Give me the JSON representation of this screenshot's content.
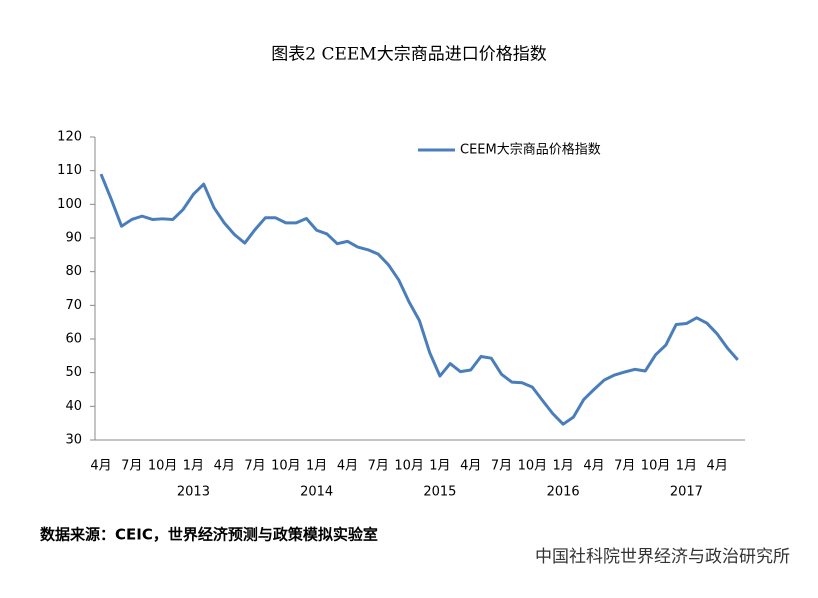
{
  "chart_data": {
    "type": "line",
    "title": "图表2 CEEM大宗商品进口价格指数",
    "categories": [
      "4月",
      null,
      null,
      "7月",
      null,
      null,
      "10月",
      null,
      null,
      "1月",
      null,
      null,
      "4月",
      null,
      null,
      "7月",
      null,
      null,
      "10月",
      null,
      null,
      "1月",
      null,
      null,
      "4月",
      null,
      null,
      "7月",
      null,
      null,
      "10月",
      null,
      null,
      "1月",
      null,
      null,
      "4月",
      null,
      null,
      "7月",
      null,
      null,
      "10月",
      null,
      null,
      "1月",
      null,
      null,
      "4月",
      null,
      null,
      "7月",
      null,
      null,
      "10月",
      null,
      null,
      "1月",
      null,
      null,
      "4月",
      null,
      null
    ],
    "x_group_labels": [
      "2013",
      "2014",
      "2015",
      "2016",
      "2017"
    ],
    "series": [
      {
        "name": "CEEM大宗商品价格指数",
        "color": "#4a7ebb",
        "values": [
          109,
          101.5,
          93.5,
          95.5,
          96.5,
          95.5,
          95.7,
          95.5,
          98.5,
          103,
          106,
          99,
          94.5,
          91,
          88.5,
          92.5,
          96,
          96,
          94.5,
          94.5,
          95.8,
          92.3,
          91.2,
          88.3,
          89,
          87.3,
          86.5,
          85.2,
          82,
          77.5,
          71,
          65.5,
          56,
          49,
          52.7,
          50.3,
          50.8,
          54.8,
          54.3,
          49.5,
          47.2,
          47,
          45.7,
          41.7,
          37.8,
          34.7,
          36.8,
          42,
          45,
          47.8,
          49.3,
          50.2,
          51,
          50.5,
          55.3,
          58.2,
          64.3,
          64.6,
          66.3,
          64.7,
          61.5,
          57.3,
          53.8
        ]
      }
    ],
    "ylim": [
      30,
      120
    ],
    "yticks": [
      30,
      40,
      50,
      60,
      70,
      80,
      90,
      100,
      110,
      120
    ],
    "legend": "top-right",
    "source": "数据来源：CEIC，世界经济预测与政策模拟实验室",
    "watermark": "中国社科院世界经济与政治研究所"
  }
}
